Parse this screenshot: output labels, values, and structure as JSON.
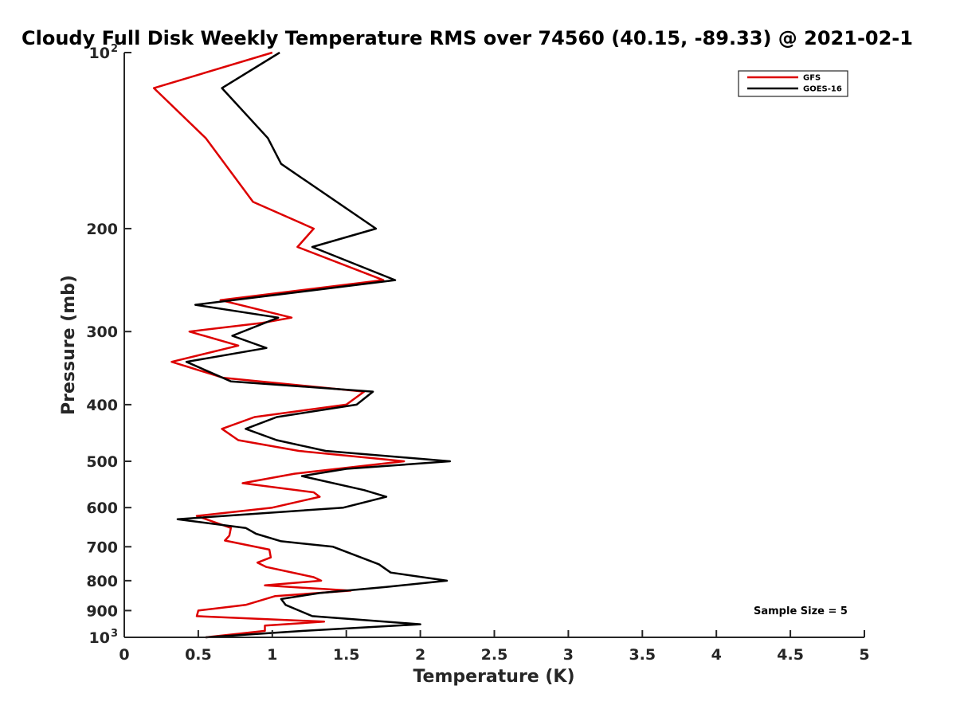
{
  "chart_data": {
    "type": "line",
    "title": "Cloudy Full Disk Weekly Temperature RMS over 74560 (40.15, -89.33) @ 2021-02-1",
    "xlabel": "Temperature (K)",
    "ylabel": "Pressure (mb)",
    "xlim": [
      0,
      5
    ],
    "ylim": [
      100,
      1000
    ],
    "y_scale": "log",
    "y_reversed": true,
    "grid": false,
    "legend_position": "top-right",
    "x_ticks": [
      {
        "v": 0,
        "label": "0"
      },
      {
        "v": 0.5,
        "label": "0.5"
      },
      {
        "v": 1,
        "label": "1"
      },
      {
        "v": 1.5,
        "label": "1.5"
      },
      {
        "v": 2,
        "label": "2"
      },
      {
        "v": 2.5,
        "label": "2.5"
      },
      {
        "v": 3,
        "label": "3"
      },
      {
        "v": 3.5,
        "label": "3.5"
      },
      {
        "v": 4,
        "label": "4"
      },
      {
        "v": 4.5,
        "label": "4.5"
      },
      {
        "v": 5,
        "label": "5"
      }
    ],
    "y_ticks": [
      {
        "v": 100,
        "label": "10",
        "sup": "2"
      },
      {
        "v": 200,
        "label": "200"
      },
      {
        "v": 300,
        "label": "300"
      },
      {
        "v": 400,
        "label": "400"
      },
      {
        "v": 500,
        "label": "500"
      },
      {
        "v": 600,
        "label": "600"
      },
      {
        "v": 700,
        "label": "700"
      },
      {
        "v": 800,
        "label": "800"
      },
      {
        "v": 900,
        "label": "900"
      },
      {
        "v": 1000,
        "label": "10",
        "sup": "3"
      }
    ],
    "annotation": "Sample Size = 5",
    "series": [
      {
        "name": "GFS",
        "color": "#dd0000",
        "points": [
          [
            1.0,
            100
          ],
          [
            0.2,
            115
          ],
          [
            0.55,
            140
          ],
          [
            0.87,
            180
          ],
          [
            1.28,
            200
          ],
          [
            1.17,
            215
          ],
          [
            1.75,
            245
          ],
          [
            0.65,
            265
          ],
          [
            1.13,
            284
          ],
          [
            0.93,
            290
          ],
          [
            0.44,
            300
          ],
          [
            0.77,
            317
          ],
          [
            0.32,
            338
          ],
          [
            0.67,
            360
          ],
          [
            1.62,
            380
          ],
          [
            1.5,
            400
          ],
          [
            0.88,
            420
          ],
          [
            0.66,
            440
          ],
          [
            0.77,
            460
          ],
          [
            1.18,
            480
          ],
          [
            1.89,
            500
          ],
          [
            1.15,
            525
          ],
          [
            0.8,
            545
          ],
          [
            1.28,
            565
          ],
          [
            1.32,
            575
          ],
          [
            1.0,
            600
          ],
          [
            0.49,
            620
          ],
          [
            0.72,
            650
          ],
          [
            0.71,
            670
          ],
          [
            0.68,
            683
          ],
          [
            0.98,
            708
          ],
          [
            0.99,
            730
          ],
          [
            0.9,
            745
          ],
          [
            0.96,
            758
          ],
          [
            1.28,
            789
          ],
          [
            1.33,
            800
          ],
          [
            0.95,
            815
          ],
          [
            1.53,
            832
          ],
          [
            1.02,
            850
          ],
          [
            0.82,
            880
          ],
          [
            0.5,
            900
          ],
          [
            0.49,
            920
          ],
          [
            1.35,
            940
          ],
          [
            0.95,
            955
          ],
          [
            0.95,
            975
          ],
          [
            0.55,
            1000
          ]
        ]
      },
      {
        "name": "GOES-16",
        "color": "#000000",
        "points": [
          [
            1.05,
            100
          ],
          [
            0.66,
            115
          ],
          [
            0.97,
            140
          ],
          [
            1.06,
            155
          ],
          [
            1.7,
            200
          ],
          [
            1.27,
            215
          ],
          [
            1.83,
            245
          ],
          [
            0.48,
            270
          ],
          [
            1.04,
            284
          ],
          [
            0.73,
            305
          ],
          [
            0.96,
            320
          ],
          [
            0.42,
            338
          ],
          [
            0.72,
            365
          ],
          [
            1.68,
            380
          ],
          [
            1.57,
            400
          ],
          [
            1.03,
            420
          ],
          [
            0.82,
            440
          ],
          [
            1.03,
            460
          ],
          [
            1.36,
            480
          ],
          [
            2.2,
            500
          ],
          [
            1.5,
            515
          ],
          [
            1.2,
            530
          ],
          [
            1.62,
            560
          ],
          [
            1.77,
            575
          ],
          [
            1.48,
            600
          ],
          [
            0.36,
            628
          ],
          [
            0.82,
            650
          ],
          [
            0.89,
            665
          ],
          [
            1.06,
            685
          ],
          [
            1.41,
            700
          ],
          [
            1.72,
            750
          ],
          [
            1.8,
            775
          ],
          [
            2.18,
            800
          ],
          [
            1.77,
            820
          ],
          [
            1.32,
            840
          ],
          [
            1.06,
            860
          ],
          [
            1.09,
            880
          ],
          [
            1.27,
            920
          ],
          [
            2.0,
            950
          ],
          [
            1.21,
            975
          ],
          [
            0.55,
            1000
          ]
        ]
      }
    ]
  }
}
